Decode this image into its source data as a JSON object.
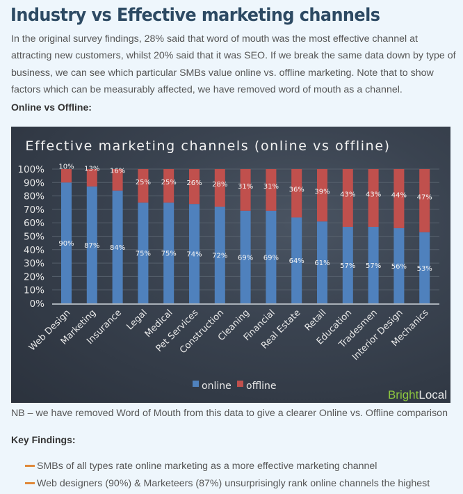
{
  "page": {
    "title": "Industry vs Effective marketing channels",
    "intro": "In the original survey findings, 28% said that word of mouth was the most effective channel at attracting new customers, whilst 20% said that it was SEO. If we break the same data down by type of business, we can see which particular SMBs value online vs. offline marketing. Note that to show factors which can be measurably affected, we have removed word of mouth as a channel.",
    "subheading": "Online vs Offline:",
    "note": "NB – we have removed Word of Mouth from this data to give a clearer Online vs. Offline comparison",
    "key_findings_heading": "Key Findings:",
    "key_findings": [
      "SMBs of all types rate online marketing as a more effective marketing channel",
      "Web designers (90%) & Marketeers (87%) unsurprisingly rank online channels the highest"
    ],
    "bullet_icon": "orange-dash-icon",
    "colors": {
      "title": "#2d4a63",
      "bullet": "#e0883a"
    }
  },
  "chart_data": {
    "type": "bar",
    "stacked": true,
    "title": "Effective marketing channels (online vs offline)",
    "xlabel": "",
    "ylabel": "",
    "ylim": [
      0,
      100
    ],
    "y_ticks": [
      "0%",
      "10%",
      "20%",
      "30%",
      "40%",
      "50%",
      "60%",
      "70%",
      "80%",
      "90%",
      "100%"
    ],
    "grid": true,
    "legend_position": "bottom",
    "categories": [
      "Web Design",
      "Marketing",
      "Insurance",
      "Legal",
      "Medical",
      "Pet Services",
      "Construction",
      "Cleaning",
      "Financial",
      "Real Estate",
      "Retail",
      "Education",
      "Tradesmen",
      "Interior Design",
      "Mechanics"
    ],
    "series": [
      {
        "name": "online",
        "color": "#4f81bd",
        "values": [
          90,
          87,
          84,
          75,
          75,
          74,
          72,
          69,
          69,
          64,
          61,
          57,
          57,
          56,
          53
        ]
      },
      {
        "name": "offline",
        "color": "#c0504d",
        "values": [
          10,
          13,
          16,
          25,
          25,
          26,
          28,
          31,
          31,
          36,
          39,
          43,
          43,
          44,
          47
        ]
      }
    ],
    "watermark": {
      "part1": "Bright",
      "part2": "Local",
      "color1": "#8dc63f",
      "color2": "#e8e8e8"
    }
  }
}
